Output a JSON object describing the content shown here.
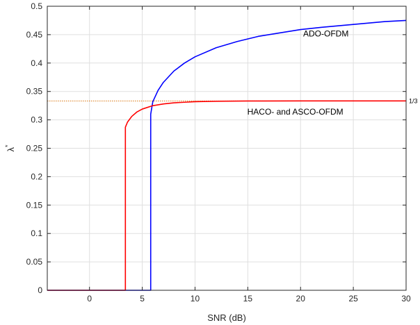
{
  "chart_data": {
    "type": "line",
    "title": "",
    "xlabel": "SNR (dB)",
    "ylabel": "λ",
    "ylabel_superscript": "*",
    "xlim": [
      -4,
      30
    ],
    "ylim": [
      0,
      0.5
    ],
    "xticks": [
      0,
      5,
      10,
      15,
      20,
      25,
      30
    ],
    "xtick_labels": [
      "0",
      "5",
      "10",
      "15",
      "20",
      "25",
      "30"
    ],
    "yticks": [
      0,
      0.05,
      0.1,
      0.15,
      0.2,
      0.25,
      0.3,
      0.35,
      0.4,
      0.45,
      0.5
    ],
    "ytick_labels": [
      "0",
      "0.05",
      "0.1",
      "0.15",
      "0.2",
      "0.25",
      "0.3",
      "0.35",
      "0.4",
      "0.45",
      "0.5"
    ],
    "grid": true,
    "legend": "none",
    "series": [
      {
        "name": "ADO-OFDM",
        "color": "#0000ff",
        "x": [
          -4,
          5.8,
          5.8,
          6,
          6.5,
          7,
          8,
          9,
          10,
          12,
          14,
          16,
          18,
          20,
          22,
          25,
          28,
          30
        ],
        "y": [
          0,
          0,
          0.31,
          0.332,
          0.352,
          0.366,
          0.386,
          0.4,
          0.411,
          0.427,
          0.438,
          0.447,
          0.453,
          0.459,
          0.463,
          0.468,
          0.473,
          0.475
        ]
      },
      {
        "name": "HACO- and ASCO-OFDM",
        "color": "#ff0000",
        "x": [
          -4,
          3.4,
          3.4,
          3.6,
          4,
          4.5,
          5,
          6,
          7,
          8,
          9,
          10,
          12,
          15,
          20,
          30
        ],
        "y": [
          0,
          0,
          0.287,
          0.296,
          0.306,
          0.314,
          0.319,
          0.325,
          0.328,
          0.33,
          0.331,
          0.332,
          0.3328,
          0.3332,
          0.3333,
          0.3333
        ]
      }
    ],
    "reference_line": {
      "y": 0.3333,
      "label": "1/3",
      "color": "#d9730d",
      "style": "dotted"
    },
    "annotations": [
      {
        "text": "ADO-OFDM",
        "x": 22.4,
        "y": 0.452
      },
      {
        "text": "HACO- and ASCO-OFDM",
        "x": 19.5,
        "y": 0.314
      }
    ]
  }
}
